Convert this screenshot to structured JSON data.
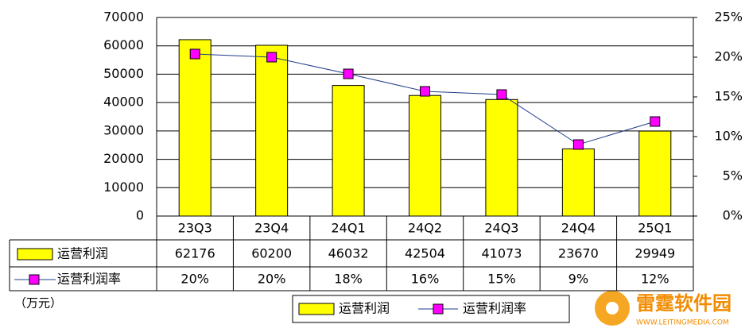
{
  "chart_data": {
    "type": "bar_line",
    "categories": [
      "23Q3",
      "23Q4",
      "24Q1",
      "24Q2",
      "24Q3",
      "24Q4",
      "25Q1"
    ],
    "series": [
      {
        "name": "运营利润",
        "color": "#ffff00",
        "type": "bar",
        "values": [
          62176,
          60200,
          46032,
          42504,
          41073,
          23670,
          29949
        ]
      },
      {
        "name": "运营利润率",
        "color": "#ff00ff",
        "line_color": "#1f3c88",
        "type": "line",
        "axis": "y2",
        "values": [
          20.4,
          20.0,
          17.9,
          15.7,
          15.3,
          9.0,
          11.9
        ],
        "value_labels": [
          "20%",
          "20%",
          "18%",
          "16%",
          "15%",
          "9%",
          "12%"
        ]
      }
    ],
    "ylim": [
      0,
      70000
    ],
    "yticks": [
      0,
      10000,
      20000,
      30000,
      40000,
      50000,
      60000,
      70000
    ],
    "y2lim": [
      0,
      25
    ],
    "y2ticks": [
      {
        "value": 0,
        "label": "0%"
      },
      {
        "value": 5,
        "label": "5%"
      },
      {
        "value": 10,
        "label": "10%"
      },
      {
        "value": 15,
        "label": "15%"
      },
      {
        "value": 20,
        "label": "20%"
      },
      {
        "value": 25,
        "label": "25%"
      }
    ],
    "grid": true,
    "legend": "bottom",
    "unit_label": "（万元）",
    "watermark": {
      "title": "雷霆软件园",
      "url": "WWW.LEITINGMEDIA.COM"
    }
  }
}
